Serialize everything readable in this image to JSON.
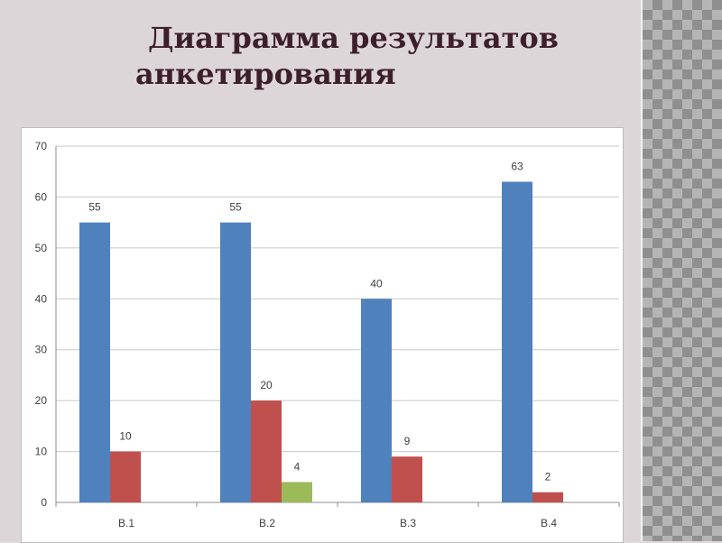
{
  "title": {
    "line1": "Диаграмма результатов",
    "line2": "анкетирования"
  },
  "colors": {
    "series1": "#4f81bd",
    "series2": "#c0504d",
    "series3": "#9bbb59"
  },
  "chart_data": {
    "type": "bar",
    "categories": [
      "В.1",
      "В.2",
      "В.3",
      "В.4"
    ],
    "series": [
      {
        "values": [
          55,
          55,
          40,
          63
        ]
      },
      {
        "values": [
          10,
          20,
          9,
          2
        ]
      },
      {
        "values": [
          null,
          4,
          null,
          null
        ]
      }
    ],
    "ylim": [
      0,
      70
    ],
    "yticks": [
      0,
      10,
      20,
      30,
      40,
      50,
      60,
      70
    ],
    "grid": true,
    "data_labels": true,
    "legend": "none"
  }
}
